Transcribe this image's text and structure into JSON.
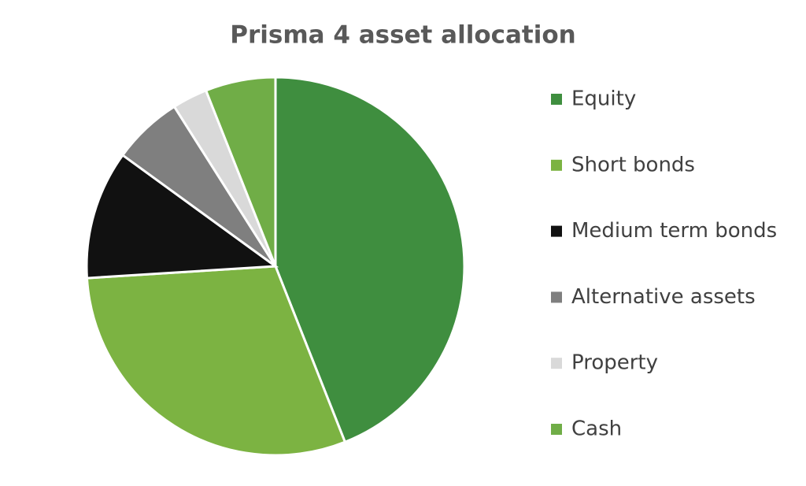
{
  "chart_data": {
    "type": "pie",
    "title": "Prisma 4 asset allocation",
    "categories": [
      "Equity",
      "Short bonds",
      "Medium term bonds",
      "Alternative assets",
      "Property",
      "Cash"
    ],
    "values": [
      44,
      30,
      11,
      6,
      3,
      6
    ],
    "colors": [
      "#3f8e3f",
      "#7cb342",
      "#111111",
      "#7f7f7f",
      "#d9d9d9",
      "#70ad47"
    ],
    "legend": "right"
  }
}
